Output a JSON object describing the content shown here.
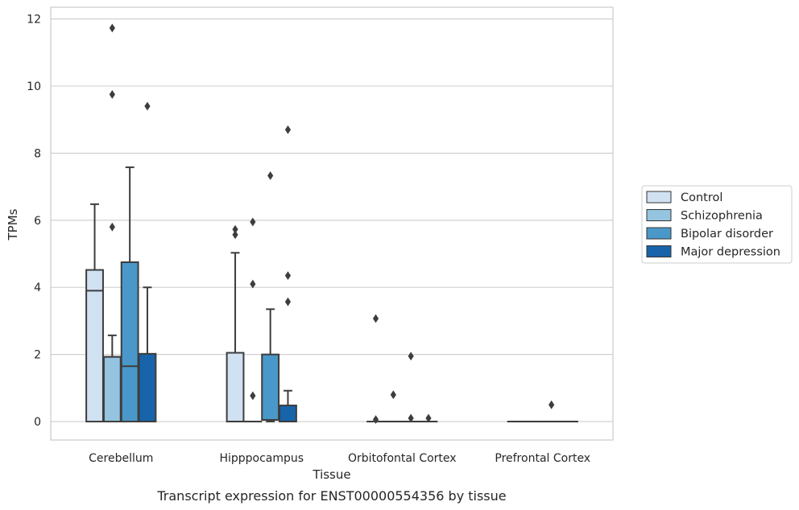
{
  "chart_data": {
    "type": "box",
    "caption": "Transcript expression for ENST00000554356 by tissue",
    "xlabel": "Tissue",
    "ylabel": "TPMs",
    "ylim": [
      -0.55,
      12.35
    ],
    "yticks": [
      0,
      2,
      4,
      6,
      8,
      10,
      12
    ],
    "grid": true,
    "legend_position": "right",
    "categories": [
      "Cerebellum",
      "Hipppocampus",
      "Orbitofontal Cortex",
      "Prefrontal Cortex"
    ],
    "series": [
      {
        "name": "Control",
        "color": "#d0e1f2",
        "boxes": [
          {
            "q1": 0,
            "median": 3.9,
            "q3": 4.52,
            "whisker_low": 0,
            "whisker_high": 6.48,
            "outliers": []
          },
          {
            "q1": 0,
            "median": 0,
            "q3": 2.05,
            "whisker_low": 0,
            "whisker_high": 5.03,
            "outliers": [
              5.57,
              5.73
            ]
          },
          {
            "q1": 0,
            "median": 0,
            "q3": 0,
            "whisker_low": 0,
            "whisker_high": 0,
            "outliers": [
              0.06,
              3.07
            ]
          },
          {
            "q1": 0,
            "median": 0,
            "q3": 0,
            "whisker_low": 0,
            "whisker_high": 0,
            "outliers": []
          }
        ]
      },
      {
        "name": "Schizophrenia",
        "color": "#94c4df",
        "boxes": [
          {
            "q1": 0,
            "median": 1.93,
            "q3": 1.93,
            "whisker_low": 0,
            "whisker_high": 2.57,
            "outliers": [
              5.8,
              9.75,
              11.73
            ]
          },
          {
            "q1": 0,
            "median": 0,
            "q3": 0,
            "whisker_low": 0,
            "whisker_high": 0,
            "outliers": [
              0.77,
              4.1,
              5.95
            ]
          },
          {
            "q1": 0,
            "median": 0,
            "q3": 0,
            "whisker_low": 0,
            "whisker_high": 0,
            "outliers": [
              0.8
            ]
          },
          {
            "q1": 0,
            "median": 0,
            "q3": 0,
            "whisker_low": 0,
            "whisker_high": 0,
            "outliers": []
          }
        ]
      },
      {
        "name": "Bipolar disorder",
        "color": "#4a98c9",
        "boxes": [
          {
            "q1": 0,
            "median": 1.65,
            "q3": 4.75,
            "whisker_low": 0,
            "whisker_high": 7.58,
            "outliers": []
          },
          {
            "q1": 0.05,
            "median": 0.05,
            "q3": 2.0,
            "whisker_low": 0,
            "whisker_high": 3.35,
            "outliers": [
              7.33
            ]
          },
          {
            "q1": 0,
            "median": 0,
            "q3": 0,
            "whisker_low": 0,
            "whisker_high": 0,
            "outliers": [
              0.1,
              1.95
            ]
          },
          {
            "q1": 0,
            "median": 0,
            "q3": 0,
            "whisker_low": 0,
            "whisker_high": 0,
            "outliers": [
              0.5
            ]
          }
        ]
      },
      {
        "name": "Major depression",
        "color": "#1764ab",
        "boxes": [
          {
            "q1": 0,
            "median": 0,
            "q3": 2.02,
            "whisker_low": 0,
            "whisker_high": 4.0,
            "outliers": [
              9.4
            ]
          },
          {
            "q1": 0,
            "median": 0,
            "q3": 0.48,
            "whisker_low": 0,
            "whisker_high": 0.92,
            "outliers": [
              3.57,
              4.35,
              8.7
            ]
          },
          {
            "q1": 0,
            "median": 0,
            "q3": 0,
            "whisker_low": 0,
            "whisker_high": 0,
            "outliers": [
              0.1
            ]
          },
          {
            "q1": 0,
            "median": 0,
            "q3": 0,
            "whisker_low": 0,
            "whisker_high": 0,
            "outliers": []
          }
        ]
      }
    ]
  }
}
